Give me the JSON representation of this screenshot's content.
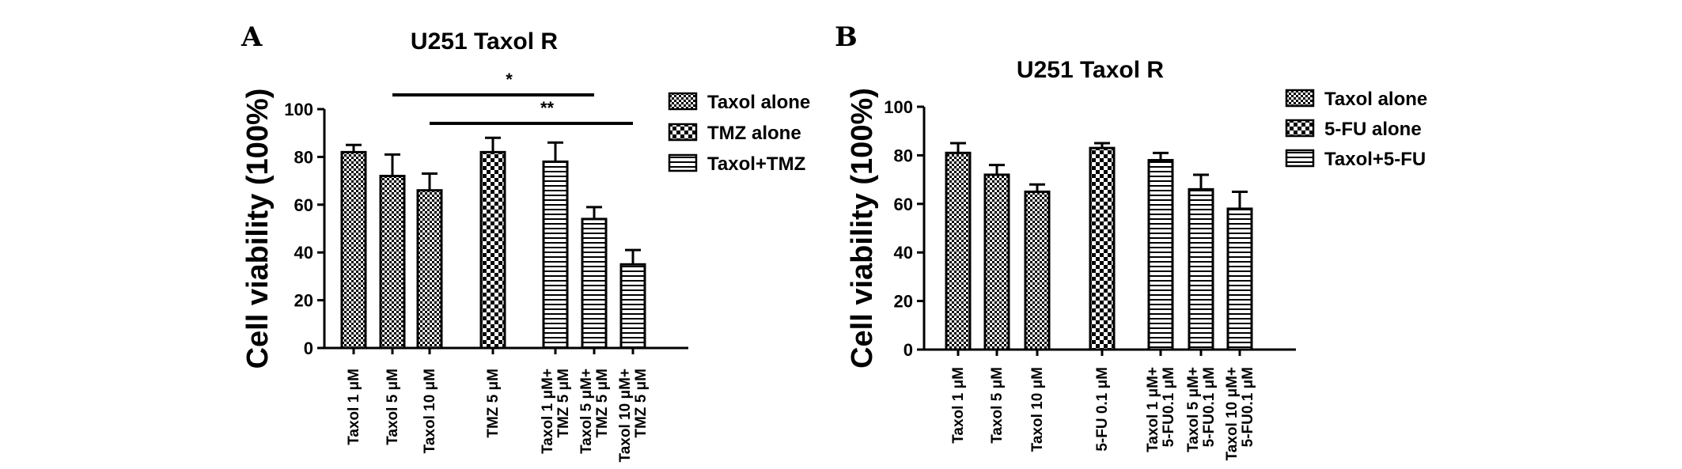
{
  "chart_data": [
    {
      "panel_label": "A",
      "type": "bar",
      "title": "U251 Taxol R",
      "ylabel": "Cell viability (100%)",
      "xlabel": "",
      "ylim": [
        0,
        100
      ],
      "yticks": [
        0,
        20,
        40,
        60,
        80,
        100
      ],
      "legend_position": "top-right",
      "legend": [
        {
          "label": "Taxol alone",
          "pattern": "check-fine"
        },
        {
          "label": "TMZ alone",
          "pattern": "check-coarse"
        },
        {
          "label": "Taxol+TMZ",
          "pattern": "horizontal"
        }
      ],
      "categories": [
        [
          "Taxol 1 μM"
        ],
        [
          "Taxol 5 μM"
        ],
        [
          "Taxol 10 μM"
        ],
        [
          "TMZ 5 μM"
        ],
        [
          "Taxol 1 μM+",
          "TMZ 5 μM"
        ],
        [
          "Taxol 5 μM+",
          "TMZ 5 μM"
        ],
        [
          "Taxol 10 μM+",
          "TMZ 5 μM"
        ]
      ],
      "groups": [
        0,
        0,
        0,
        1,
        2,
        2,
        2
      ],
      "values": [
        82,
        72,
        66,
        82,
        78,
        54,
        35
      ],
      "errors": [
        3,
        9,
        7,
        6,
        8,
        5,
        6
      ],
      "significance": [
        {
          "from": 1,
          "to": 5,
          "label": "*",
          "level": 1
        },
        {
          "from": 2,
          "to": 6,
          "label": "**",
          "level": 0
        }
      ]
    },
    {
      "panel_label": "B",
      "type": "bar",
      "title": "U251 Taxol R",
      "ylabel": "Cell viability (100%)",
      "xlabel": "",
      "ylim": [
        0,
        100
      ],
      "yticks": [
        0,
        20,
        40,
        60,
        80,
        100
      ],
      "legend_position": "top-right",
      "legend": [
        {
          "label": "Taxol alone",
          "pattern": "check-fine"
        },
        {
          "label": "5-FU alone",
          "pattern": "check-coarse"
        },
        {
          "label": "Taxol+5-FU",
          "pattern": "horizontal"
        }
      ],
      "categories": [
        [
          "Taxol 1 μM"
        ],
        [
          "Taxol 5 μM"
        ],
        [
          "Taxol 10 μM"
        ],
        [
          "5-FU 0.1 μM"
        ],
        [
          "Taxol 1 μM+",
          "5-FU0.1 μM"
        ],
        [
          "Taxol 5 μM+",
          "5-FU0.1 μM"
        ],
        [
          "Taxol 10 μM+",
          "5-FU0.1 μM"
        ]
      ],
      "groups": [
        0,
        0,
        0,
        1,
        2,
        2,
        2
      ],
      "values": [
        81,
        72,
        65,
        83,
        78,
        66,
        58
      ],
      "errors": [
        4,
        4,
        3,
        2,
        3,
        6,
        7
      ],
      "significance": []
    }
  ]
}
